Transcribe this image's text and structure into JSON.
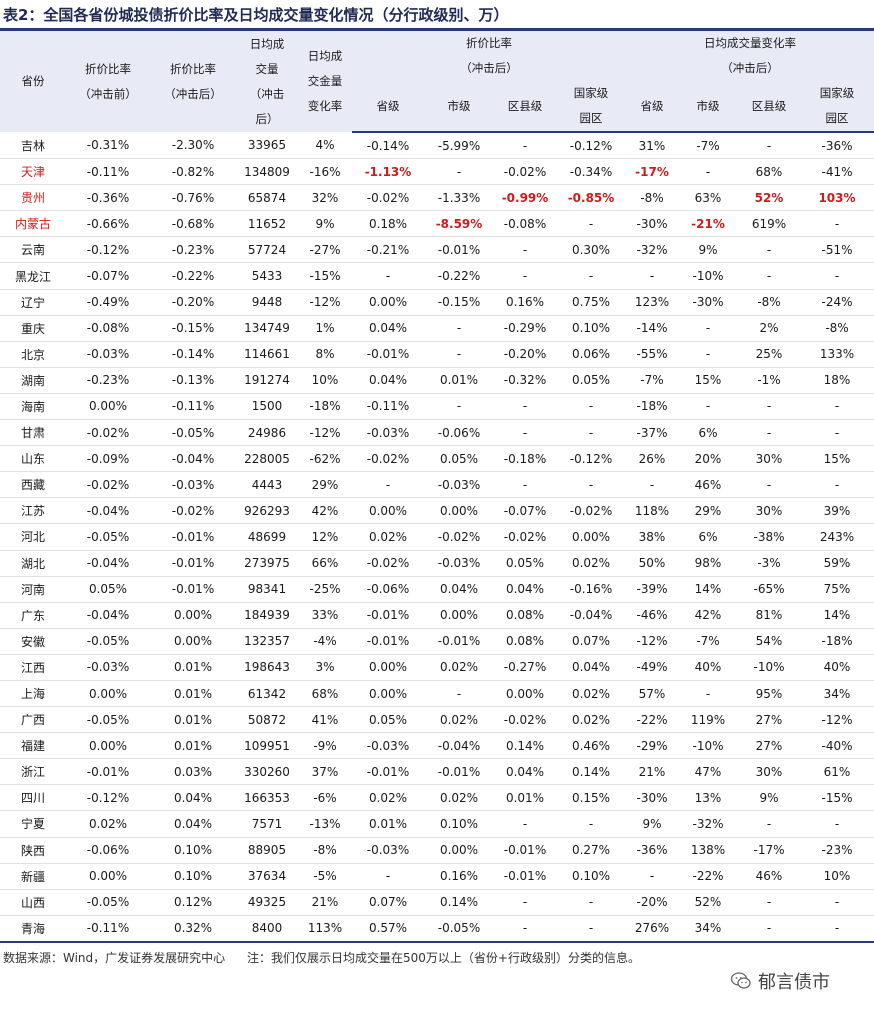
{
  "title": "表2：全国各省份城投债折价比率及日均成交量变化情况（分行政级别、万）",
  "headers": {
    "province": "省份",
    "disc_pre": [
      "折价比率",
      "（冲击前）"
    ],
    "disc_post": [
      "折价比率",
      "（冲击后）"
    ],
    "daily_vol": [
      "日均成",
      "交量",
      "（冲击",
      "后）"
    ],
    "vol_change": [
      "日均成",
      "交金量",
      "变化率"
    ],
    "group_disc": [
      "折价比率",
      "（冲击后）"
    ],
    "group_vol": [
      "日均成交量变化率",
      "（冲击后）"
    ],
    "sub_disc": [
      "省级",
      "市级",
      "区县级",
      "国家级园区"
    ],
    "sub_vol": [
      "省级",
      "市级",
      "区县级",
      "国家级园区"
    ]
  },
  "rows": [
    {
      "p": "吉林",
      "c": [
        "-0.31%",
        "-2.30%",
        "33965",
        "4%",
        "-0.14%",
        "-5.99%",
        "-",
        "-0.12%",
        "31%",
        "-7%",
        "-",
        "-36%"
      ]
    },
    {
      "p": "天津",
      "pr": 1,
      "c": [
        "-0.11%",
        "-0.82%",
        "134809",
        "-16%",
        "-1.13%",
        "-",
        "-0.02%",
        "-0.34%",
        "-17%",
        "-",
        "68%",
        "-41%"
      ],
      "r": [
        4,
        8
      ]
    },
    {
      "p": "贵州",
      "pr": 1,
      "c": [
        "-0.36%",
        "-0.76%",
        "65874",
        "32%",
        "-0.02%",
        "-1.33%",
        "-0.99%",
        "-0.85%",
        "-8%",
        "63%",
        "52%",
        "103%"
      ],
      "r": [
        6,
        7,
        10,
        11
      ]
    },
    {
      "p": "内蒙古",
      "pr": 1,
      "c": [
        "-0.66%",
        "-0.68%",
        "11652",
        "9%",
        "0.18%",
        "-8.59%",
        "-0.08%",
        "-",
        "-30%",
        "-21%",
        "619%",
        "-"
      ],
      "r": [
        5,
        9
      ]
    },
    {
      "p": "云南",
      "c": [
        "-0.12%",
        "-0.23%",
        "57724",
        "-27%",
        "-0.21%",
        "-0.01%",
        "-",
        "0.30%",
        "-32%",
        "9%",
        "-",
        "-51%"
      ]
    },
    {
      "p": "黑龙江",
      "c": [
        "-0.07%",
        "-0.22%",
        "5433",
        "-15%",
        "-",
        "-0.22%",
        "-",
        "-",
        "-",
        "-10%",
        "-",
        "-"
      ]
    },
    {
      "p": "辽宁",
      "c": [
        "-0.49%",
        "-0.20%",
        "9448",
        "-12%",
        "0.00%",
        "-0.15%",
        "0.16%",
        "0.75%",
        "123%",
        "-30%",
        "-8%",
        "-24%"
      ]
    },
    {
      "p": "重庆",
      "c": [
        "-0.08%",
        "-0.15%",
        "134749",
        "1%",
        "0.04%",
        "-",
        "-0.29%",
        "0.10%",
        "-14%",
        "-",
        "2%",
        "-8%"
      ]
    },
    {
      "p": "北京",
      "c": [
        "-0.03%",
        "-0.14%",
        "114661",
        "8%",
        "-0.01%",
        "-",
        "-0.20%",
        "0.06%",
        "-55%",
        "-",
        "25%",
        "133%"
      ]
    },
    {
      "p": "湖南",
      "c": [
        "-0.23%",
        "-0.13%",
        "191274",
        "10%",
        "0.04%",
        "0.01%",
        "-0.32%",
        "0.05%",
        "-7%",
        "15%",
        "-1%",
        "18%"
      ]
    },
    {
      "p": "海南",
      "c": [
        "0.00%",
        "-0.11%",
        "1500",
        "-18%",
        "-0.11%",
        "-",
        "-",
        "-",
        "-18%",
        "-",
        "-",
        "-"
      ]
    },
    {
      "p": "甘肃",
      "c": [
        "-0.02%",
        "-0.05%",
        "24986",
        "-12%",
        "-0.03%",
        "-0.06%",
        "-",
        "-",
        "-37%",
        "6%",
        "-",
        "-"
      ]
    },
    {
      "p": "山东",
      "c": [
        "-0.09%",
        "-0.04%",
        "228005",
        "-62%",
        "-0.02%",
        "0.05%",
        "-0.18%",
        "-0.12%",
        "26%",
        "20%",
        "30%",
        "15%"
      ]
    },
    {
      "p": "西藏",
      "c": [
        "-0.02%",
        "-0.03%",
        "4443",
        "29%",
        "-",
        "-0.03%",
        "-",
        "-",
        "-",
        "46%",
        "-",
        "-"
      ]
    },
    {
      "p": "江苏",
      "c": [
        "-0.04%",
        "-0.02%",
        "926293",
        "42%",
        "0.00%",
        "0.00%",
        "-0.07%",
        "-0.02%",
        "118%",
        "29%",
        "30%",
        "39%"
      ]
    },
    {
      "p": "河北",
      "c": [
        "-0.05%",
        "-0.01%",
        "48699",
        "12%",
        "0.02%",
        "-0.02%",
        "-0.02%",
        "0.00%",
        "38%",
        "6%",
        "-38%",
        "243%"
      ]
    },
    {
      "p": "湖北",
      "c": [
        "-0.04%",
        "-0.01%",
        "273975",
        "66%",
        "-0.02%",
        "-0.03%",
        "0.05%",
        "0.02%",
        "50%",
        "98%",
        "-3%",
        "59%"
      ]
    },
    {
      "p": "河南",
      "c": [
        "0.05%",
        "-0.01%",
        "98341",
        "-25%",
        "-0.06%",
        "0.04%",
        "0.04%",
        "-0.16%",
        "-39%",
        "14%",
        "-65%",
        "75%"
      ]
    },
    {
      "p": "广东",
      "c": [
        "-0.04%",
        "0.00%",
        "184939",
        "33%",
        "-0.01%",
        "0.00%",
        "0.08%",
        "-0.04%",
        "-46%",
        "42%",
        "81%",
        "14%"
      ]
    },
    {
      "p": "安徽",
      "c": [
        "-0.05%",
        "0.00%",
        "132357",
        "-4%",
        "-0.01%",
        "-0.01%",
        "0.08%",
        "0.07%",
        "-12%",
        "-7%",
        "54%",
        "-18%"
      ]
    },
    {
      "p": "江西",
      "c": [
        "-0.03%",
        "0.01%",
        "198643",
        "3%",
        "0.00%",
        "0.02%",
        "-0.27%",
        "0.04%",
        "-49%",
        "40%",
        "-10%",
        "40%"
      ]
    },
    {
      "p": "上海",
      "c": [
        "0.00%",
        "0.01%",
        "61342",
        "68%",
        "0.00%",
        "-",
        "0.00%",
        "0.02%",
        "57%",
        "-",
        "95%",
        "34%"
      ]
    },
    {
      "p": "广西",
      "c": [
        "-0.05%",
        "0.01%",
        "50872",
        "41%",
        "0.05%",
        "0.02%",
        "-0.02%",
        "0.02%",
        "-22%",
        "119%",
        "27%",
        "-12%"
      ]
    },
    {
      "p": "福建",
      "c": [
        "0.00%",
        "0.01%",
        "109951",
        "-9%",
        "-0.03%",
        "-0.04%",
        "0.14%",
        "0.46%",
        "-29%",
        "-10%",
        "27%",
        "-40%"
      ]
    },
    {
      "p": "浙江",
      "c": [
        "-0.01%",
        "0.03%",
        "330260",
        "37%",
        "-0.01%",
        "-0.01%",
        "0.04%",
        "0.14%",
        "21%",
        "47%",
        "30%",
        "61%"
      ]
    },
    {
      "p": "四川",
      "c": [
        "-0.12%",
        "0.04%",
        "166353",
        "-6%",
        "0.02%",
        "0.02%",
        "0.01%",
        "0.15%",
        "-30%",
        "13%",
        "9%",
        "-15%"
      ]
    },
    {
      "p": "宁夏",
      "c": [
        "0.02%",
        "0.04%",
        "7571",
        "-13%",
        "0.01%",
        "0.10%",
        "-",
        "-",
        "9%",
        "-32%",
        "-",
        "-"
      ]
    },
    {
      "p": "陕西",
      "c": [
        "-0.06%",
        "0.10%",
        "88905",
        "-8%",
        "-0.03%",
        "0.00%",
        "-0.01%",
        "0.27%",
        "-36%",
        "138%",
        "-17%",
        "-23%"
      ]
    },
    {
      "p": "新疆",
      "c": [
        "0.00%",
        "0.10%",
        "37634",
        "-5%",
        "-",
        "0.16%",
        "-0.01%",
        "0.10%",
        "-",
        "-22%",
        "46%",
        "10%"
      ]
    },
    {
      "p": "山西",
      "c": [
        "-0.05%",
        "0.12%",
        "49325",
        "21%",
        "0.07%",
        "0.14%",
        "-",
        "-",
        "-20%",
        "52%",
        "-",
        "-"
      ]
    },
    {
      "p": "青海",
      "c": [
        "-0.11%",
        "0.32%",
        "8400",
        "113%",
        "0.57%",
        "-0.05%",
        "-",
        "-",
        "276%",
        "34%",
        "-",
        "-"
      ]
    }
  ],
  "footer": {
    "source": "数据来源：Wind，广发证券发展研究中心",
    "note": "注：我们仅展示日均成交量在500万以上（省份+行政级别）分类的信息。"
  },
  "watermark": "郁言债市",
  "colors": {
    "accent": "#243a7a",
    "highlight": "#d11a1a",
    "header_bg": "#e8ebf6"
  }
}
